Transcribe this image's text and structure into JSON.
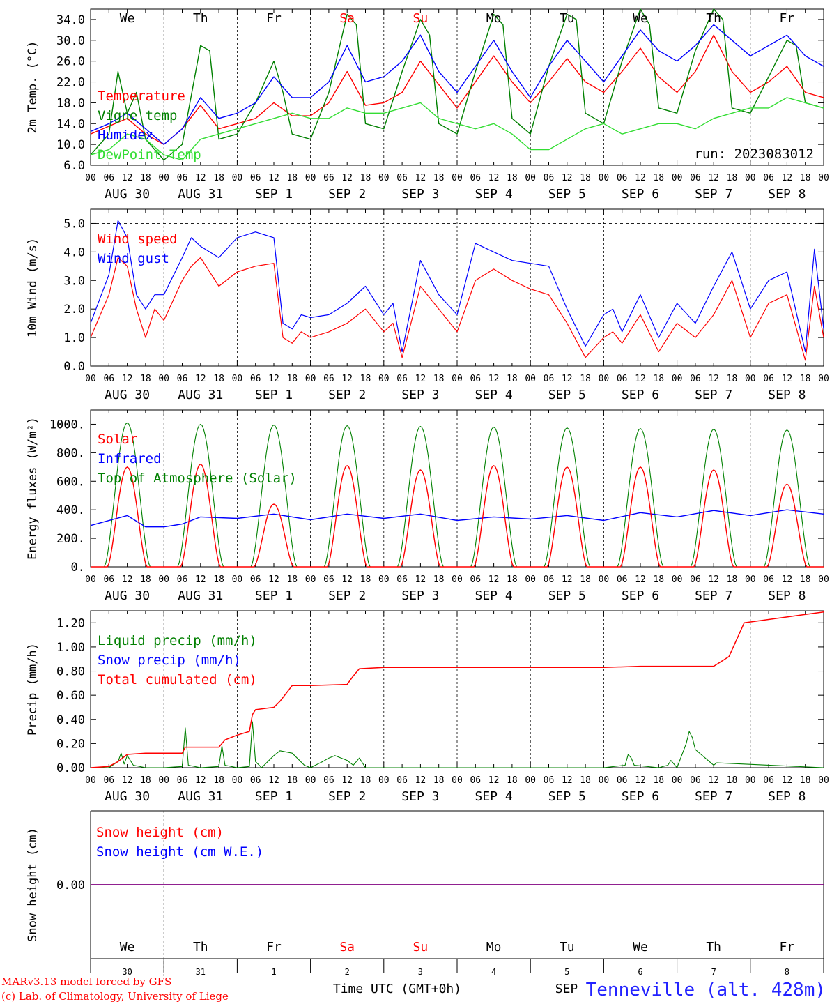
{
  "run_label": "run: 2023083012",
  "hour_ticks": [
    "00",
    "06",
    "12",
    "18"
  ],
  "day_labels": [
    "AUG 30",
    "AUG 31",
    "SEP  1",
    "SEP  2",
    "SEP  3",
    "SEP  4",
    "SEP  5",
    "SEP  6",
    "SEP  7",
    "SEP  8"
  ],
  "weekdays": [
    {
      "label": "We",
      "color": "#000000"
    },
    {
      "label": "Th",
      "color": "#000000"
    },
    {
      "label": "Fr",
      "color": "#000000"
    },
    {
      "label": "Sa",
      "color": "#ff0000"
    },
    {
      "label": "Su",
      "color": "#ff0000"
    },
    {
      "label": "Mo",
      "color": "#000000"
    },
    {
      "label": "Tu",
      "color": "#000000"
    },
    {
      "label": "We",
      "color": "#000000"
    },
    {
      "label": "Th",
      "color": "#000000"
    },
    {
      "label": "Fr",
      "color": "#000000"
    }
  ],
  "bottom_day_numbers": [
    "30",
    "31",
    "1",
    "2",
    "3",
    "4",
    "5",
    "6",
    "7",
    "8"
  ],
  "bottom_month": "SEP",
  "xaxis_title": "Time UTC (GMT+0h)",
  "station": "Tenneville (alt. 428m)",
  "credit_line1": "MARv3.13 model forced by GFS",
  "credit_line2": "(c) Lab. of Climatology, University of Liege",
  "colors": {
    "red": "#ff0000",
    "green": "#008000",
    "blue": "#0000ff",
    "lightgreen": "#33dd33",
    "purple": "#800080"
  },
  "chart_data": [
    {
      "type": "line",
      "ylabel": "2m Temp. (°C)",
      "yticks": [
        "6.0",
        "10.0",
        "14.0",
        "18.0",
        "22.0",
        "26.0",
        "30.0",
        "34.0"
      ],
      "ylim": [
        6,
        36
      ],
      "x_unit": "hours since 2023-08-30 00 UTC",
      "series": [
        {
          "name": "Temperature",
          "color": "#ff0000",
          "x": [
            0,
            6,
            12,
            18,
            24,
            30,
            36,
            42,
            48,
            54,
            60,
            66,
            72,
            78,
            84,
            90,
            96,
            102,
            108,
            114,
            120,
            126,
            132,
            138,
            144,
            150,
            156,
            162,
            168,
            174,
            180,
            186,
            192,
            198,
            204,
            210,
            216,
            222,
            228,
            234,
            240
          ],
          "y": [
            12,
            13.5,
            15,
            12,
            10,
            13,
            17.5,
            13,
            14,
            15,
            18,
            15.5,
            15.5,
            18,
            24,
            17.5,
            18,
            20,
            26,
            21.5,
            17,
            22,
            27,
            22,
            18,
            22,
            26.5,
            22,
            20,
            24,
            28.5,
            23,
            20,
            24,
            31,
            24,
            20,
            22,
            25,
            20,
            19
          ]
        },
        {
          "name": "Vigne temp",
          "color": "#008000",
          "x": [
            0,
            6,
            9,
            12,
            15,
            18,
            24,
            30,
            36,
            39,
            42,
            48,
            54,
            60,
            63,
            66,
            72,
            78,
            84,
            87,
            90,
            96,
            102,
            108,
            111,
            114,
            120,
            126,
            132,
            135,
            138,
            144,
            150,
            156,
            159,
            162,
            168,
            174,
            180,
            183,
            186,
            192,
            198,
            204,
            207,
            210,
            216,
            222,
            228,
            231,
            234,
            240
          ],
          "y": [
            8,
            12,
            24,
            16,
            20,
            11,
            7,
            10,
            29,
            28,
            11,
            12,
            18,
            26,
            20,
            12,
            11,
            20,
            35,
            33,
            14,
            13,
            24,
            34,
            31,
            14,
            12,
            24,
            35,
            33,
            15,
            12,
            25,
            35,
            34,
            16,
            14,
            26,
            36,
            33,
            17,
            16,
            28,
            37,
            34,
            17,
            16,
            23,
            30,
            29,
            18,
            17
          ]
        },
        {
          "name": "Humidex",
          "color": "#0000ff",
          "x": [
            0,
            6,
            12,
            18,
            24,
            30,
            36,
            42,
            48,
            54,
            60,
            66,
            72,
            78,
            84,
            90,
            96,
            102,
            108,
            114,
            120,
            126,
            132,
            138,
            144,
            150,
            156,
            162,
            168,
            174,
            180,
            186,
            192,
            198,
            204,
            210,
            216,
            222,
            228,
            234,
            240
          ],
          "y": [
            12.5,
            14,
            16,
            13,
            10,
            13,
            19,
            15,
            16,
            18,
            23,
            19,
            19,
            22,
            29,
            22,
            23,
            26,
            31,
            24,
            20,
            25,
            30,
            24,
            19,
            25,
            30,
            26,
            22,
            27,
            32,
            28,
            26,
            29,
            33,
            30,
            27,
            29,
            31,
            27,
            25
          ]
        },
        {
          "name": "DewPoint Temp",
          "color": "#33dd33",
          "x": [
            0,
            6,
            12,
            18,
            24,
            30,
            36,
            42,
            48,
            54,
            60,
            66,
            72,
            78,
            84,
            90,
            96,
            102,
            108,
            114,
            120,
            126,
            132,
            138,
            144,
            150,
            156,
            162,
            168,
            174,
            180,
            186,
            192,
            198,
            204,
            210,
            216,
            222,
            228,
            234,
            240
          ],
          "y": [
            8,
            9,
            12,
            11,
            8,
            7,
            11,
            12,
            13,
            14,
            15,
            16,
            15,
            15,
            17,
            16,
            16,
            17,
            18,
            15,
            14,
            13,
            14,
            12,
            9,
            9,
            11,
            13,
            14,
            12,
            13,
            14,
            14,
            13,
            15,
            16,
            17,
            17,
            19,
            18,
            17
          ]
        }
      ]
    },
    {
      "type": "line",
      "ylabel": "10m Wind (m/s)",
      "yticks": [
        "0.0",
        "1.0",
        "2.0",
        "3.0",
        "4.0",
        "5.0"
      ],
      "ylim": [
        0,
        5.5
      ],
      "x_unit": "hours since 2023-08-30 00 UTC",
      "series": [
        {
          "name": "Wind speed",
          "color": "#ff0000",
          "x": [
            0,
            6,
            9,
            12,
            15,
            18,
            21,
            24,
            30,
            33,
            36,
            42,
            48,
            54,
            60,
            63,
            66,
            69,
            72,
            78,
            84,
            90,
            96,
            99,
            102,
            108,
            114,
            120,
            126,
            132,
            138,
            144,
            150,
            156,
            162,
            168,
            171,
            174,
            180,
            186,
            192,
            198,
            204,
            210,
            216,
            222,
            228,
            234,
            237,
            240
          ],
          "y": [
            1.0,
            2.5,
            3.8,
            3.5,
            2.0,
            1.0,
            2.0,
            1.6,
            3.0,
            3.5,
            3.8,
            2.8,
            3.3,
            3.5,
            3.6,
            1.0,
            0.8,
            1.2,
            1.0,
            1.2,
            1.5,
            2.0,
            1.2,
            1.5,
            0.3,
            2.8,
            2.0,
            1.2,
            3.0,
            3.4,
            3.0,
            2.7,
            2.5,
            1.5,
            0.3,
            1.0,
            1.2,
            0.8,
            1.8,
            0.5,
            1.5,
            1.0,
            1.8,
            3.0,
            1.0,
            2.2,
            2.5,
            0.2,
            2.8,
            1.0
          ]
        },
        {
          "name": "Wind gust",
          "color": "#0000ff",
          "x": [
            0,
            6,
            9,
            12,
            15,
            18,
            21,
            24,
            30,
            33,
            36,
            42,
            48,
            54,
            60,
            63,
            66,
            69,
            72,
            78,
            84,
            90,
            96,
            99,
            102,
            108,
            114,
            120,
            126,
            132,
            138,
            144,
            150,
            156,
            162,
            168,
            171,
            174,
            180,
            186,
            192,
            198,
            204,
            210,
            216,
            222,
            228,
            234,
            237,
            240
          ],
          "y": [
            1.5,
            3.2,
            5.1,
            4.5,
            2.5,
            2.0,
            2.5,
            2.5,
            3.8,
            4.5,
            4.2,
            3.8,
            4.5,
            4.7,
            4.5,
            1.5,
            1.3,
            1.8,
            1.7,
            1.8,
            2.2,
            2.8,
            1.8,
            2.2,
            0.5,
            3.7,
            2.5,
            1.8,
            4.3,
            4.0,
            3.7,
            3.6,
            3.5,
            2.0,
            0.7,
            1.8,
            2.0,
            1.2,
            2.5,
            1.0,
            2.2,
            1.5,
            2.8,
            4.0,
            2.0,
            3.0,
            3.3,
            0.5,
            4.1,
            1.3
          ]
        }
      ]
    },
    {
      "type": "line",
      "ylabel": "Energy fluxes (W/m²)",
      "yticks": [
        "0.",
        "200.",
        "400.",
        "600.",
        "800.",
        "1000."
      ],
      "ylim": [
        0,
        1100
      ],
      "x_unit": "hours since 2023-08-30 00 UTC",
      "solar_peaks": [
        700,
        720,
        440,
        710,
        680,
        710,
        700,
        700,
        680,
        580
      ],
      "toa_peaks": [
        1010,
        1000,
        995,
        990,
        985,
        980,
        975,
        970,
        965,
        960
      ],
      "series": [
        {
          "name": "Solar",
          "color": "#ff0000"
        },
        {
          "name": "Infrared",
          "color": "#0000ff",
          "x": [
            0,
            12,
            18,
            24,
            30,
            36,
            48,
            60,
            72,
            84,
            96,
            108,
            120,
            132,
            144,
            156,
            168,
            180,
            192,
            204,
            216,
            228,
            240
          ],
          "y": [
            290,
            360,
            280,
            280,
            300,
            350,
            340,
            370,
            330,
            370,
            340,
            370,
            325,
            350,
            335,
            360,
            325,
            380,
            350,
            395,
            360,
            400,
            370
          ]
        },
        {
          "name": "Top of Atmosphere (Solar)",
          "color": "#008000"
        }
      ]
    },
    {
      "type": "line",
      "ylabel": "Precip (mm/h)",
      "yticks": [
        "0.00",
        "0.20",
        "0.40",
        "0.60",
        "0.80",
        "1.00",
        "1.20"
      ],
      "ylim": [
        0,
        1.3
      ],
      "x_unit": "hours since 2023-08-30 00 UTC",
      "series": [
        {
          "name": "Liquid precip (mm/h)",
          "color": "#008000",
          "x": [
            0,
            6,
            9,
            10,
            11,
            12,
            14,
            18,
            24,
            30,
            31,
            32,
            36,
            42,
            43,
            44,
            48,
            52,
            53,
            54,
            56,
            60,
            62,
            66,
            70,
            72,
            76,
            78,
            80,
            84,
            86,
            88,
            90,
            96,
            108,
            120,
            132,
            144,
            168,
            175,
            176,
            177,
            178,
            186,
            189,
            190,
            192,
            195,
            196,
            197,
            198,
            204,
            205,
            240
          ],
          "y": [
            0,
            0,
            0.05,
            0.12,
            0.03,
            0.1,
            0.02,
            0,
            0,
            0.01,
            0.33,
            0.02,
            0,
            0.01,
            0.18,
            0.02,
            0,
            0.01,
            0.38,
            0.05,
            0,
            0.1,
            0.14,
            0.12,
            0.02,
            0,
            0.05,
            0.08,
            0.1,
            0.06,
            0.02,
            0.08,
            0,
            0,
            0,
            0,
            0,
            0,
            0,
            0.02,
            0.11,
            0.08,
            0.02,
            0,
            0.02,
            0.06,
            0,
            0.2,
            0.3,
            0.25,
            0.15,
            0.02,
            0.04,
            0
          ]
        },
        {
          "name": "Snow precip (mm/h)",
          "color": "#0000ff"
        },
        {
          "name": "Total cumulated (cm)",
          "color": "#ff0000",
          "x": [
            0,
            6,
            9,
            12,
            18,
            24,
            30,
            31,
            42,
            44,
            48,
            52,
            53,
            54,
            60,
            62,
            66,
            72,
            84,
            86,
            88,
            96,
            120,
            144,
            168,
            180,
            204,
            209,
            214,
            240
          ],
          "y": [
            0,
            0.01,
            0.05,
            0.11,
            0.12,
            0.12,
            0.12,
            0.17,
            0.17,
            0.23,
            0.27,
            0.3,
            0.44,
            0.48,
            0.5,
            0.55,
            0.68,
            0.68,
            0.69,
            0.76,
            0.82,
            0.83,
            0.83,
            0.83,
            0.83,
            0.84,
            0.84,
            0.92,
            1.2,
            1.29
          ]
        }
      ]
    },
    {
      "type": "line",
      "ylabel": "Snow height (cm)",
      "yticks": [
        "0.00"
      ],
      "ylim": [
        -1,
        1
      ],
      "series": [
        {
          "name": "Snow height (cm)",
          "color": "#ff0000",
          "value": 0
        },
        {
          "name": "Snow height (cm W.E.)",
          "color": "#0000ff",
          "value": 0
        }
      ]
    }
  ]
}
